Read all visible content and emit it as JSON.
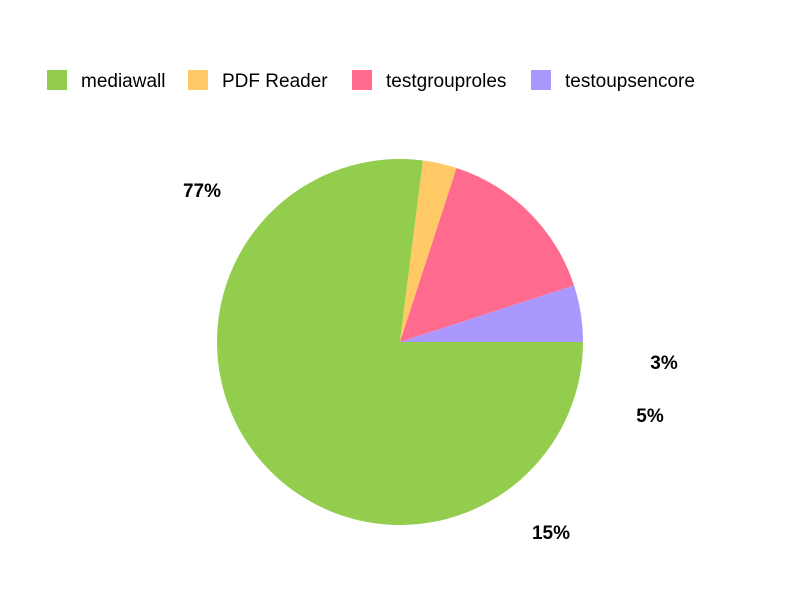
{
  "chart_data": {
    "type": "pie",
    "legend_position": "top",
    "slices": [
      {
        "name": "mediawall",
        "value": 77,
        "label": "77%",
        "color": "#93cd4d"
      },
      {
        "name": "PDF Reader",
        "value": 3,
        "label": "3%",
        "color": "#ffc966"
      },
      {
        "name": "testgrouproles",
        "value": 15,
        "label": "15%",
        "color": "#ff6b8f"
      },
      {
        "name": "testoupsencore",
        "value": 5,
        "label": "5%",
        "color": "#ab98ff"
      }
    ]
  }
}
